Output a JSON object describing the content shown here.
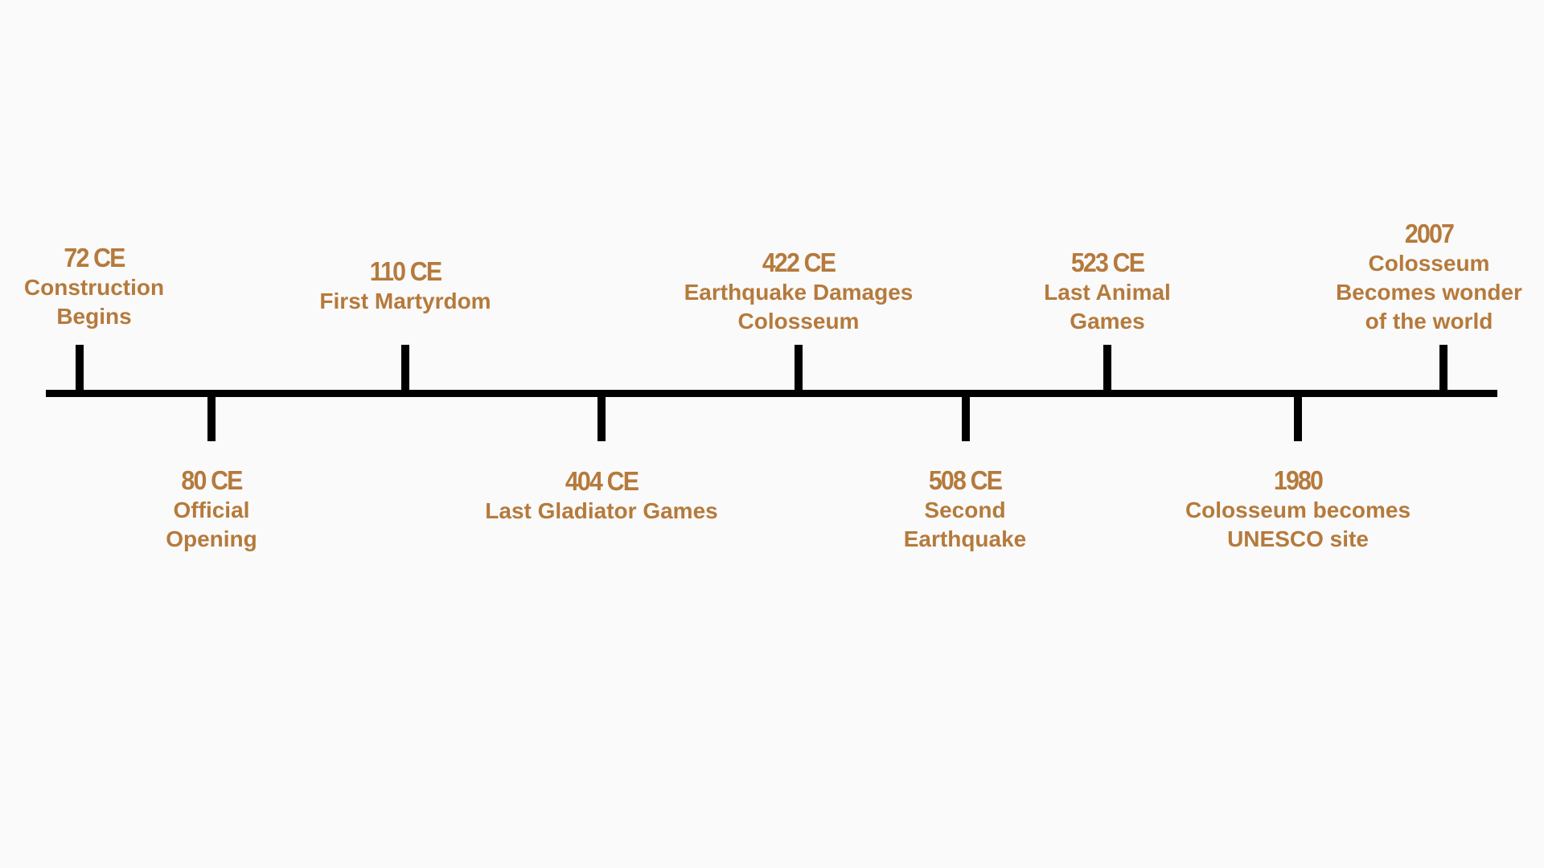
{
  "timeline": {
    "line_color": "#000000",
    "text_color": "#b57a3c",
    "events": [
      {
        "year": "72 CE",
        "text": "Construction\nBegins",
        "side": "above"
      },
      {
        "year": "80 CE",
        "text": "Official\nOpening",
        "side": "below"
      },
      {
        "year": "110 CE",
        "text": "First Martyrdom",
        "side": "above"
      },
      {
        "year": "404 CE",
        "text": "Last Gladiator Games",
        "side": "below"
      },
      {
        "year": "422 CE",
        "text": "Earthquake Damages\nColosseum",
        "side": "above"
      },
      {
        "year": "508 CE",
        "text": "Second\nEarthquake",
        "side": "below"
      },
      {
        "year": "523 CE",
        "text": "Last Animal\nGames",
        "side": "above"
      },
      {
        "year": "1980",
        "text": "Colosseum  becomes\nUNESCO site",
        "side": "below"
      },
      {
        "year": "2007",
        "text": "Colosseum\nBecomes wonder\nof the world",
        "side": "above"
      }
    ]
  }
}
